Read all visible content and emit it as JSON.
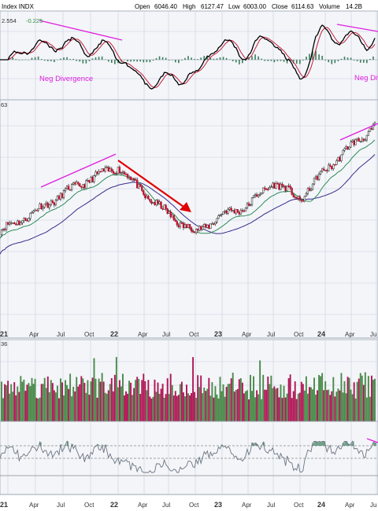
{
  "header": {
    "symbol_label": "Index INDX",
    "open_label": "Open",
    "open_value": "6046.40",
    "high_label": "High",
    "high_value": "6127.47",
    "low_label": "Low",
    "low_value": "6003.00",
    "close_label": "Close",
    "close_value": "6114.63",
    "volume_label": "Volume",
    "volume_value": "14.2B"
  },
  "macd_panel": {
    "readout_a": "2.554",
    "readout_b": "-0.225",
    "annotation_left": "Neg Divergence",
    "annotation_right": "Neg Divergence",
    "annotation_color": "#e020e0"
  },
  "price_panel": {
    "corner_label": "63"
  },
  "volume_panel": {
    "corner_label": "36"
  },
  "colors": {
    "up": "#2e8b3e",
    "down": "#c8102e",
    "vol_up": "#4a8a4a",
    "vol_down": "#b01454",
    "ma_fast": "#2e8b57",
    "ma_slow": "#3a2a8c",
    "macd": "#000000",
    "signal": "#c41e3a",
    "histogram": "#3c7d5a",
    "divergence": "#e020e0",
    "arrow": "#e00000",
    "grid": "#c8d0dc",
    "panel_bg": "#f3f5f9"
  },
  "chart_data": {
    "type": "line",
    "x_axis_labels": [
      "21",
      "Apr",
      "Jul",
      "Oct",
      "22",
      "Apr",
      "Jul",
      "Oct",
      "23",
      "Apr",
      "Jul",
      "Oct",
      "24",
      "Apr",
      "Ju"
    ],
    "x": [
      "2021-01",
      "2021-04",
      "2021-07",
      "2021-10",
      "2022-01",
      "2022-04",
      "2022-07",
      "2022-10",
      "2023-01",
      "2023-04",
      "2023-07",
      "2023-10",
      "2024-01",
      "2024-04",
      "2024-07"
    ],
    "series": [
      {
        "values": [
          3750,
          4000,
          4300,
          4550,
          4750,
          4300,
          3950,
          3650,
          3950,
          4100,
          4500,
          4200,
          4700,
          5100,
          5450
        ]
      }
    ],
    "annotations": [
      "Neg Divergence",
      "Neg Divergence"
    ]
  }
}
